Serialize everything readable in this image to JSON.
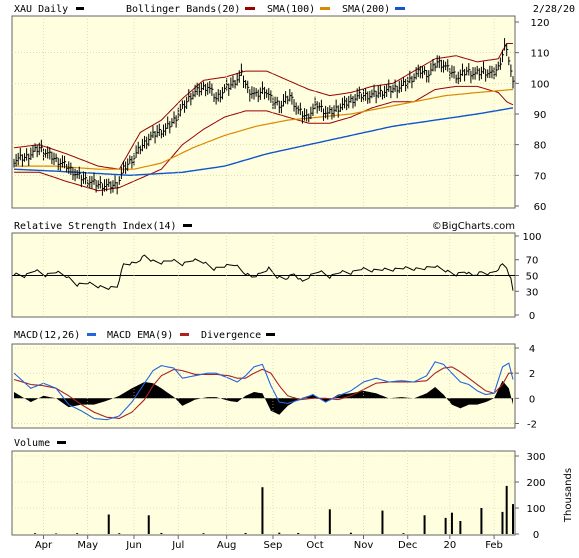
{
  "chart_data": {
    "type": "line",
    "symbol": "XAU",
    "period": "Daily",
    "date": "2/28/20",
    "watermark": "©BigCharts.com",
    "colors": {
      "panel_bg": "#ffffe0",
      "price": "#000000",
      "bollinger": "#990000",
      "sma100": "#dd8800",
      "sma200": "#1155cc",
      "macd": "#2266dd",
      "macd_ema": "#aa2222",
      "divergence": "#000000",
      "volume": "#000000"
    },
    "legend": {
      "price": "XAU Daily",
      "bollinger": "Bollinger Bands(20)",
      "sma100": "SMA(100)",
      "sma200": "SMA(200)",
      "rsi": "Relative Strength Index(14)",
      "macd": "MACD(12,26)",
      "macd_ema": "MACD EMA(9)",
      "divergence": "Divergence",
      "volume": "Volume"
    },
    "months": [
      "Apr",
      "May",
      "Jun",
      "Jul",
      "Aug",
      "Sep",
      "Oct",
      "Nov",
      "Dec",
      "20",
      "Feb"
    ],
    "month_day_index": [
      14,
      35,
      57,
      78,
      101,
      123,
      143,
      166,
      187,
      207,
      228
    ],
    "day_count": 238,
    "price_panel": {
      "yticks": [
        60,
        70,
        80,
        90,
        100,
        110,
        120
      ],
      "ylim": [
        60,
        120
      ],
      "price_knots": [
        [
          0,
          75
        ],
        [
          6,
          76
        ],
        [
          12,
          79
        ],
        [
          16,
          77
        ],
        [
          20,
          75
        ],
        [
          25,
          73
        ],
        [
          30,
          70
        ],
        [
          34,
          68.5
        ],
        [
          40,
          67
        ],
        [
          45,
          66.5
        ],
        [
          49,
          67
        ],
        [
          52,
          72
        ],
        [
          57,
          76
        ],
        [
          60,
          79
        ],
        [
          64,
          82
        ],
        [
          68,
          84
        ],
        [
          72,
          85
        ],
        [
          76,
          88
        ],
        [
          80,
          92
        ],
        [
          84,
          96
        ],
        [
          88,
          98
        ],
        [
          92,
          99
        ],
        [
          96,
          95
        ],
        [
          100,
          98
        ],
        [
          104,
          100
        ],
        [
          108,
          103
        ],
        [
          111,
          98
        ],
        [
          115,
          96
        ],
        [
          119,
          98
        ],
        [
          123,
          94
        ],
        [
          127,
          93
        ],
        [
          131,
          96
        ],
        [
          135,
          91
        ],
        [
          139,
          89
        ],
        [
          144,
          93
        ],
        [
          149,
          90
        ],
        [
          154,
          92
        ],
        [
          159,
          94
        ],
        [
          164,
          96
        ],
        [
          169,
          96
        ],
        [
          174,
          97
        ],
        [
          179,
          98
        ],
        [
          184,
          99
        ],
        [
          188,
          101
        ],
        [
          193,
          104
        ],
        [
          197,
          103
        ],
        [
          201,
          107
        ],
        [
          204,
          106
        ],
        [
          207,
          104
        ],
        [
          211,
          102
        ],
        [
          215,
          104
        ],
        [
          219,
          103
        ],
        [
          223,
          104
        ],
        [
          227,
          103
        ],
        [
          230,
          105
        ],
        [
          233,
          112
        ],
        [
          235,
          108
        ],
        [
          237,
          100
        ]
      ],
      "sma100_knots": [
        [
          0,
          73
        ],
        [
          20,
          73
        ],
        [
          40,
          72
        ],
        [
          57,
          72
        ],
        [
          70,
          74
        ],
        [
          85,
          79
        ],
        [
          100,
          83
        ],
        [
          115,
          86
        ],
        [
          130,
          88
        ],
        [
          145,
          89
        ],
        [
          160,
          90
        ],
        [
          175,
          92
        ],
        [
          190,
          94
        ],
        [
          205,
          96
        ],
        [
          220,
          97
        ],
        [
          237,
          98
        ]
      ],
      "sma200_knots": [
        [
          0,
          72
        ],
        [
          30,
          71
        ],
        [
          55,
          70
        ],
        [
          80,
          71
        ],
        [
          100,
          73
        ],
        [
          120,
          77
        ],
        [
          140,
          80
        ],
        [
          160,
          83
        ],
        [
          180,
          86
        ],
        [
          200,
          88
        ],
        [
          220,
          90
        ],
        [
          237,
          92
        ]
      ],
      "bb_upper_knots": [
        [
          0,
          79
        ],
        [
          12,
          80
        ],
        [
          25,
          77
        ],
        [
          40,
          73
        ],
        [
          50,
          72
        ],
        [
          60,
          84
        ],
        [
          70,
          88
        ],
        [
          80,
          95
        ],
        [
          90,
          101
        ],
        [
          100,
          102
        ],
        [
          110,
          104
        ],
        [
          120,
          104
        ],
        [
          130,
          101
        ],
        [
          140,
          98
        ],
        [
          150,
          96
        ],
        [
          160,
          97
        ],
        [
          170,
          99
        ],
        [
          180,
          100
        ],
        [
          190,
          104
        ],
        [
          200,
          108
        ],
        [
          210,
          109
        ],
        [
          220,
          107
        ],
        [
          230,
          108
        ],
        [
          234,
          113
        ],
        [
          237,
          113
        ]
      ],
      "bb_lower_knots": [
        [
          0,
          71
        ],
        [
          12,
          71
        ],
        [
          25,
          68
        ],
        [
          40,
          65
        ],
        [
          50,
          66
        ],
        [
          60,
          69
        ],
        [
          70,
          72
        ],
        [
          80,
          80
        ],
        [
          90,
          85
        ],
        [
          100,
          89
        ],
        [
          110,
          91
        ],
        [
          120,
          91
        ],
        [
          130,
          89
        ],
        [
          140,
          87
        ],
        [
          150,
          87
        ],
        [
          160,
          89
        ],
        [
          170,
          92
        ],
        [
          180,
          94
        ],
        [
          190,
          94
        ],
        [
          200,
          98
        ],
        [
          210,
          99
        ],
        [
          220,
          99
        ],
        [
          230,
          97
        ],
        [
          234,
          94
        ],
        [
          237,
          93
        ]
      ]
    },
    "rsi_panel": {
      "yticks": [
        0,
        30,
        50,
        70,
        100
      ],
      "ylim": [
        0,
        100
      ],
      "reference": 50,
      "knots": [
        [
          0,
          52
        ],
        [
          5,
          49
        ],
        [
          10,
          57
        ],
        [
          15,
          50
        ],
        [
          20,
          55
        ],
        [
          25,
          49
        ],
        [
          30,
          38
        ],
        [
          35,
          41
        ],
        [
          40,
          36
        ],
        [
          45,
          34
        ],
        [
          49,
          36
        ],
        [
          52,
          64
        ],
        [
          58,
          66
        ],
        [
          62,
          75
        ],
        [
          66,
          68
        ],
        [
          70,
          66
        ],
        [
          75,
          70
        ],
        [
          80,
          64
        ],
        [
          85,
          70
        ],
        [
          90,
          67
        ],
        [
          95,
          58
        ],
        [
          100,
          62
        ],
        [
          105,
          64
        ],
        [
          109,
          54
        ],
        [
          113,
          48
        ],
        [
          117,
          52
        ],
        [
          121,
          59
        ],
        [
          125,
          48
        ],
        [
          129,
          46
        ],
        [
          133,
          52
        ],
        [
          137,
          42
        ],
        [
          141,
          50
        ],
        [
          145,
          56
        ],
        [
          150,
          48
        ],
        [
          155,
          55
        ],
        [
          160,
          53
        ],
        [
          165,
          59
        ],
        [
          170,
          56
        ],
        [
          175,
          58
        ],
        [
          180,
          57
        ],
        [
          185,
          60
        ],
        [
          190,
          58
        ],
        [
          195,
          59
        ],
        [
          200,
          62
        ],
        [
          205,
          56
        ],
        [
          210,
          51
        ],
        [
          214,
          55
        ],
        [
          218,
          50
        ],
        [
          222,
          54
        ],
        [
          226,
          52
        ],
        [
          229,
          56
        ],
        [
          232,
          64
        ],
        [
          234,
          60
        ],
        [
          236,
          45
        ],
        [
          237,
          30
        ]
      ]
    },
    "macd_panel": {
      "yticks": [
        -2,
        0,
        2,
        4
      ],
      "ylim": [
        -2.2,
        4
      ],
      "macd_knots": [
        [
          0,
          2.0
        ],
        [
          8,
          0.8
        ],
        [
          14,
          1.2
        ],
        [
          20,
          0.8
        ],
        [
          26,
          -0.5
        ],
        [
          32,
          -1.0
        ],
        [
          38,
          -1.6
        ],
        [
          44,
          -1.7
        ],
        [
          50,
          -1.4
        ],
        [
          56,
          -0.3
        ],
        [
          62,
          1.2
        ],
        [
          66,
          2.2
        ],
        [
          70,
          2.6
        ],
        [
          76,
          2.4
        ],
        [
          80,
          1.6
        ],
        [
          86,
          1.8
        ],
        [
          92,
          2.0
        ],
        [
          96,
          2.0
        ],
        [
          102,
          1.6
        ],
        [
          106,
          1.3
        ],
        [
          110,
          1.8
        ],
        [
          114,
          2.5
        ],
        [
          118,
          2.7
        ],
        [
          122,
          1.0
        ],
        [
          126,
          -0.3
        ],
        [
          130,
          -0.4
        ],
        [
          136,
          -0.1
        ],
        [
          142,
          0.3
        ],
        [
          148,
          -0.3
        ],
        [
          154,
          0.2
        ],
        [
          160,
          0.6
        ],
        [
          166,
          1.3
        ],
        [
          172,
          1.6
        ],
        [
          178,
          1.3
        ],
        [
          184,
          1.4
        ],
        [
          190,
          1.3
        ],
        [
          196,
          1.8
        ],
        [
          200,
          2.9
        ],
        [
          204,
          2.7
        ],
        [
          208,
          2.0
        ],
        [
          212,
          1.3
        ],
        [
          216,
          1.1
        ],
        [
          220,
          0.6
        ],
        [
          224,
          0.3
        ],
        [
          228,
          0.4
        ],
        [
          232,
          2.5
        ],
        [
          235,
          2.8
        ],
        [
          237,
          1.5
        ]
      ],
      "signal_knots": [
        [
          0,
          1.5
        ],
        [
          8,
          1.1
        ],
        [
          14,
          1.0
        ],
        [
          20,
          0.8
        ],
        [
          26,
          0.2
        ],
        [
          32,
          -0.5
        ],
        [
          38,
          -1.1
        ],
        [
          44,
          -1.5
        ],
        [
          50,
          -1.6
        ],
        [
          56,
          -1.1
        ],
        [
          62,
          -0.1
        ],
        [
          66,
          1.0
        ],
        [
          70,
          1.8
        ],
        [
          76,
          2.3
        ],
        [
          80,
          2.2
        ],
        [
          86,
          1.9
        ],
        [
          92,
          1.9
        ],
        [
          96,
          1.9
        ],
        [
          102,
          1.8
        ],
        [
          106,
          1.6
        ],
        [
          110,
          1.6
        ],
        [
          114,
          2.0
        ],
        [
          118,
          2.3
        ],
        [
          122,
          2.0
        ],
        [
          126,
          1.0
        ],
        [
          130,
          0.2
        ],
        [
          136,
          -0.1
        ],
        [
          142,
          0.0
        ],
        [
          148,
          0.0
        ],
        [
          154,
          -0.1
        ],
        [
          160,
          0.2
        ],
        [
          166,
          0.7
        ],
        [
          172,
          1.2
        ],
        [
          178,
          1.3
        ],
        [
          184,
          1.3
        ],
        [
          190,
          1.3
        ],
        [
          196,
          1.4
        ],
        [
          200,
          2.0
        ],
        [
          204,
          2.4
        ],
        [
          208,
          2.5
        ],
        [
          212,
          2.1
        ],
        [
          216,
          1.6
        ],
        [
          220,
          1.1
        ],
        [
          224,
          0.6
        ],
        [
          228,
          0.4
        ],
        [
          232,
          1.1
        ],
        [
          235,
          2.0
        ],
        [
          237,
          2.0
        ]
      ]
    },
    "volume_panel": {
      "yticks": [
        0,
        100,
        200,
        300
      ],
      "ylim": [
        0,
        300
      ],
      "axis_label": "Thousands",
      "spikes": [
        [
          10,
          3
        ],
        [
          20,
          2
        ],
        [
          30,
          3
        ],
        [
          45,
          75
        ],
        [
          50,
          3
        ],
        [
          64,
          72
        ],
        [
          70,
          4
        ],
        [
          90,
          3
        ],
        [
          110,
          4
        ],
        [
          118,
          180
        ],
        [
          126,
          5
        ],
        [
          135,
          4
        ],
        [
          150,
          95
        ],
        [
          160,
          5
        ],
        [
          175,
          90
        ],
        [
          185,
          3
        ],
        [
          195,
          72
        ],
        [
          205,
          62
        ],
        [
          208,
          82
        ],
        [
          212,
          50
        ],
        [
          222,
          100
        ],
        [
          232,
          85
        ],
        [
          234,
          185
        ],
        [
          237,
          115
        ]
      ]
    }
  }
}
